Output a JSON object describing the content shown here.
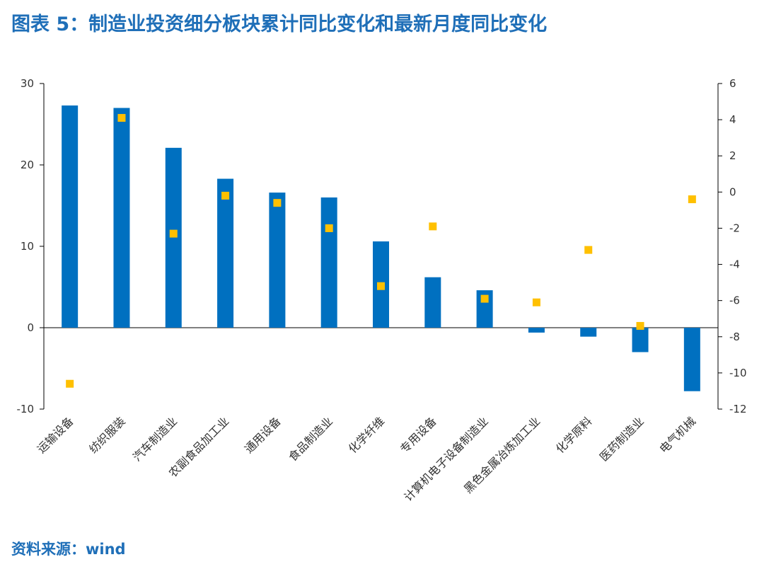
{
  "title": "图表 5：制造业投资细分板块累计同比变化和最新月度同比变化",
  "source": "资料来源：wind",
  "colors": {
    "bar": "#0070c0",
    "marker": "#ffc000",
    "title": "#1f6fb8",
    "axis": "#000000"
  },
  "chart_data": {
    "type": "bar",
    "title": "图表 5：制造业投资细分板块累计同比变化和最新月度同比变化",
    "xlabel": "",
    "ylabel": "",
    "grid": false,
    "legend": "none",
    "categories": [
      "运输设备",
      "纺织服装",
      "汽车制造业",
      "农副食品加工业",
      "通用设备",
      "食品制造业",
      "化学纤维",
      "专用设备",
      "计算机电子设备制造业",
      "黑色金属冶炼加工业",
      "化学原料",
      "医药制造业",
      "电气机械"
    ],
    "ylim": [
      -10,
      30
    ],
    "yticks": [
      -10,
      0,
      10,
      20,
      30
    ],
    "y2lim": [
      -12,
      6
    ],
    "y2ticks": [
      -12,
      -10,
      -8,
      -6,
      -4,
      -2,
      0,
      2,
      4,
      6
    ],
    "series": [
      {
        "type": "bar",
        "axis": "left",
        "values": [
          27.3,
          27.0,
          22.1,
          18.3,
          16.6,
          16.0,
          10.6,
          6.2,
          4.6,
          -0.6,
          -1.1,
          -3.0,
          -7.8
        ]
      },
      {
        "type": "scatter",
        "axis": "right",
        "values": [
          -10.6,
          4.1,
          -2.3,
          -0.2,
          -0.6,
          -2.0,
          -5.2,
          -1.9,
          -5.9,
          -6.1,
          -3.2,
          -7.4,
          -0.4
        ]
      }
    ]
  }
}
